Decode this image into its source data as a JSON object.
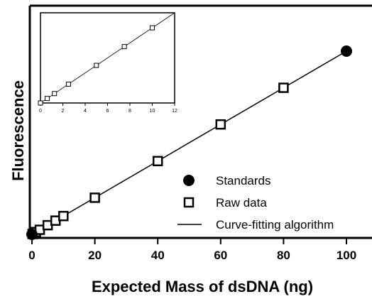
{
  "chart_data": [
    {
      "type": "scatter",
      "title": "",
      "xlabel": "Expected Mass of dsDNA (ng)",
      "ylabel": "Fluorescence",
      "xlim": [
        0,
        110
      ],
      "ylim": [
        0,
        100
      ],
      "x_ticks": [
        "0",
        "20",
        "40",
        "60",
        "80",
        "100"
      ],
      "y_ticks": [],
      "grid": false,
      "legend_position": "bottom-right",
      "legend": [
        "Standards",
        "Raw data",
        "Curve-fitting algorithm"
      ],
      "series": [
        {
          "name": "Standards",
          "marker": "filled-circle",
          "color": "#000000",
          "points": [
            [
              0,
              0
            ],
            [
              100,
              100
            ]
          ]
        },
        {
          "name": "Raw data",
          "marker": "open-square",
          "color": "#000000",
          "points": [
            [
              0.2,
              0.2
            ],
            [
              0.6,
              0.6
            ],
            [
              1.25,
              1.25
            ],
            [
              2.5,
              2.5
            ],
            [
              5,
              5
            ],
            [
              7.5,
              7.5
            ],
            [
              10,
              10
            ],
            [
              20,
              20
            ],
            [
              40,
              40
            ],
            [
              60,
              60
            ],
            [
              80,
              80
            ]
          ]
        },
        {
          "name": "Curve-fitting algorithm",
          "marker": "line",
          "color": "#000000",
          "points": [
            [
              0,
              0
            ],
            [
              100,
              100
            ]
          ]
        }
      ]
    },
    {
      "type": "scatter",
      "title": "",
      "xlabel": "",
      "ylabel": "",
      "xlim": [
        0,
        12
      ],
      "ylim": [
        0,
        12
      ],
      "x_ticks": [
        "0",
        "2",
        "4",
        "6",
        "8",
        "10",
        "12"
      ],
      "y_ticks": [],
      "grid": false,
      "series": [
        {
          "name": "",
          "marker": "open-square",
          "color": "#000000",
          "points": [
            [
              0,
              0
            ],
            [
              0.6,
              0.6
            ],
            [
              1.25,
              1.25
            ],
            [
              2.5,
              2.5
            ],
            [
              5,
              5
            ],
            [
              7.5,
              7.5
            ],
            [
              10,
              10
            ]
          ]
        },
        {
          "name": "",
          "marker": "line",
          "color": "#000000",
          "points": [
            [
              0,
              0
            ],
            [
              12,
              12
            ]
          ]
        }
      ]
    }
  ]
}
